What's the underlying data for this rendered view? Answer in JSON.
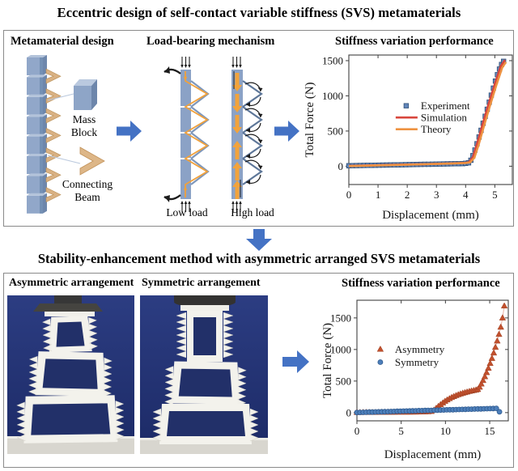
{
  "page": {
    "main_title": "Eccentric design of self-contact variable stiffness (SVS) metamaterials",
    "section2_title": "Stability-enhancement method with asymmetric arranged SVS metamaterials"
  },
  "top_box": {
    "panel1_title": "Metamaterial design",
    "panel2_title": "Load-bearing mechanism",
    "panel3_title": "Stiffness variation performance",
    "labels": {
      "mass_block": [
        "Mass",
        "Block"
      ],
      "connecting_beam": [
        "Connecting",
        "Beam"
      ],
      "low_load": "Low load",
      "high_load": "High load"
    }
  },
  "bottom_box": {
    "panel1_title": "Asymmetric arrangement",
    "panel2_title": "Symmetric arrangement",
    "panel3_title": "Stiffness variation performance"
  },
  "colors": {
    "flow_arrow": "#4472c4",
    "beam_blue": "#8ba2c6",
    "chevron_tan": "#d9b183",
    "experiment_marker": "#6286ba",
    "simulation_line": "#d8463c",
    "theory_line": "#ee9240",
    "asymmetry_marker": "#c2512e",
    "symmetry_marker": "#4d7fba",
    "photo_background": "#24336e"
  },
  "chart_data": [
    {
      "type": "scatter",
      "title": "",
      "xlabel": "Displacement (mm)",
      "ylabel": "Total Force (N)",
      "xlim": [
        0,
        5.6
      ],
      "ylim": [
        -260,
        1580
      ],
      "xticks": [
        0,
        1,
        2,
        3,
        4,
        5
      ],
      "yticks": [
        0,
        500,
        1000,
        1500
      ],
      "grid": false,
      "legend": {
        "fx": 0.44,
        "fy": 0.42,
        "dy": 14.5
      },
      "series": [
        {
          "name": "Experiment",
          "marker": "square",
          "color": "#6286ba",
          "edge": "#2f4f77",
          "x": [
            0,
            0.13,
            0.26,
            0.39,
            0.52,
            0.65,
            0.78,
            0.91,
            1.04,
            1.17,
            1.3,
            1.43,
            1.56,
            1.69,
            1.82,
            1.95,
            2.08,
            2.21,
            2.34,
            2.47,
            2.6,
            2.73,
            2.86,
            2.99,
            3.12,
            3.25,
            3.38,
            3.51,
            3.64,
            3.77,
            3.9,
            4.0,
            4.1,
            4.18,
            4.25,
            4.32,
            4.39,
            4.46,
            4.53,
            4.6,
            4.67,
            4.74,
            4.81,
            4.88,
            4.95,
            5.02,
            5.09,
            5.16,
            5.23,
            5.3
          ],
          "y": [
            7,
            8,
            9,
            10,
            11,
            12,
            13,
            14,
            15,
            16,
            17,
            18,
            19,
            20,
            21,
            22,
            23,
            24,
            25,
            26,
            27,
            28,
            29,
            30,
            31,
            32,
            33,
            34,
            35,
            36,
            37,
            41,
            48,
            85,
            150,
            230,
            320,
            415,
            510,
            610,
            710,
            810,
            910,
            1010,
            1110,
            1210,
            1300,
            1380,
            1445,
            1490
          ]
        },
        {
          "name": "Simulation",
          "marker": null,
          "line": {
            "color": "#d8463c",
            "width": 2.6
          },
          "x": [
            0,
            0.5,
            1,
            1.5,
            2,
            2.5,
            3,
            3.5,
            4,
            4.12,
            4.25,
            4.4,
            4.6,
            4.8,
            5.0,
            5.2,
            5.35
          ],
          "y": [
            4,
            9,
            14,
            19,
            24,
            29,
            34,
            40,
            48,
            58,
            130,
            330,
            620,
            900,
            1170,
            1420,
            1510
          ]
        },
        {
          "name": "Theory",
          "marker": null,
          "line": {
            "color": "#ee9240",
            "width": 2.6
          },
          "x": [
            0,
            0.5,
            1,
            1.5,
            2,
            2.5,
            3,
            3.5,
            4,
            4.15,
            4.3,
            4.45,
            4.65,
            4.85,
            5.05,
            5.25,
            5.38
          ],
          "y": [
            2,
            7,
            12,
            17,
            22,
            27,
            32,
            38,
            46,
            54,
            120,
            310,
            600,
            880,
            1150,
            1400,
            1480
          ]
        }
      ]
    },
    {
      "type": "scatter",
      "title": "Stiffness variation performance",
      "xlabel": "Displacement (mm)",
      "ylabel": "Total Force (N)",
      "xlim": [
        0,
        17.1
      ],
      "ylim": [
        -130,
        1780
      ],
      "xticks": [
        0,
        5,
        10,
        15
      ],
      "yticks": [
        0,
        500,
        1000,
        1500
      ],
      "grid": false,
      "legend": {
        "fx": 0.251,
        "fy": 0.436,
        "dy": 16
      },
      "series": [
        {
          "name": "Asymmetry",
          "marker": "triangle",
          "color": "#c2512e",
          "edge": "#9e3f21",
          "line": {
            "color": "#eab1a3",
            "width": 1
          },
          "x": [
            0,
            0.35,
            0.7,
            1.05,
            1.4,
            1.75,
            2.1,
            2.45,
            2.8,
            3.15,
            3.5,
            3.85,
            4.2,
            4.55,
            4.9,
            5.25,
            5.6,
            5.95,
            6.3,
            6.65,
            7.0,
            7.35,
            7.7,
            8.05,
            8.4,
            8.7,
            8.95,
            9.2,
            9.45,
            9.7,
            9.95,
            10.2,
            10.45,
            10.7,
            10.95,
            11.2,
            11.45,
            11.7,
            11.95,
            12.2,
            12.45,
            12.7,
            12.95,
            13.2,
            13.45,
            13.65,
            13.85,
            14.05,
            14.25,
            14.45,
            14.65,
            14.85,
            15.05,
            15.25,
            15.45,
            15.65,
            15.85,
            16.05,
            16.25,
            16.45,
            16.65
          ],
          "y": [
            3,
            3,
            4,
            4,
            5,
            5,
            5,
            6,
            6,
            6,
            7,
            7,
            7,
            8,
            8,
            8,
            9,
            9,
            10,
            10,
            11,
            12,
            13,
            15,
            20,
            40,
            70,
            100,
            128,
            155,
            180,
            202,
            222,
            240,
            256,
            271,
            285,
            297,
            308,
            318,
            327,
            336,
            344,
            352,
            360,
            367,
            405,
            455,
            510,
            570,
            635,
            705,
            780,
            860,
            945,
            1035,
            1135,
            1240,
            1355,
            1500,
            1690
          ]
        },
        {
          "name": "Symmetry",
          "marker": "circle",
          "color": "#4d7fba",
          "edge": "#2f5a8f",
          "line": {
            "color": "#7d9cc6",
            "width": 1
          },
          "x": [
            0,
            0.35,
            0.7,
            1.05,
            1.4,
            1.75,
            2.1,
            2.45,
            2.8,
            3.15,
            3.5,
            3.85,
            4.2,
            4.55,
            4.9,
            5.25,
            5.6,
            5.95,
            6.3,
            6.65,
            7.0,
            7.35,
            7.7,
            8.05,
            8.4,
            8.75,
            9.1,
            9.45,
            9.8,
            10.15,
            10.5,
            10.85,
            11.2,
            11.55,
            11.9,
            12.25,
            12.6,
            12.95,
            13.3,
            13.65,
            14.0,
            14.35,
            14.7,
            15.05,
            15.4,
            15.75,
            16.1
          ],
          "y": [
            2,
            3,
            5,
            6,
            8,
            9,
            11,
            12,
            13,
            15,
            16,
            18,
            19,
            21,
            22,
            24,
            25,
            26,
            28,
            29,
            31,
            32,
            34,
            35,
            36,
            38,
            39,
            41,
            42,
            44,
            45,
            46,
            48,
            49,
            51,
            52,
            54,
            55,
            57,
            58,
            59,
            61,
            62,
            64,
            65,
            67,
            12
          ]
        }
      ]
    }
  ]
}
